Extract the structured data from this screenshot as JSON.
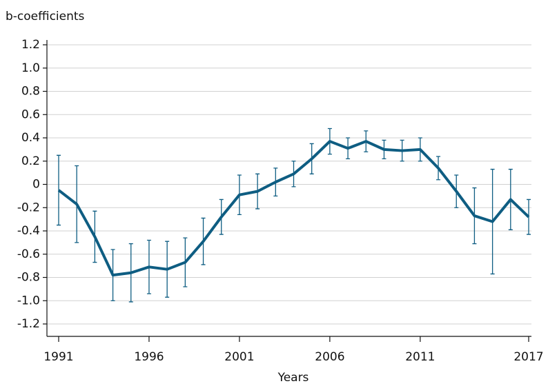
{
  "chart_data": {
    "type": "line",
    "y_label": "b-coefficients",
    "x_label": "Years",
    "x": [
      1991,
      1992,
      1993,
      1994,
      1995,
      1996,
      1997,
      1998,
      1999,
      2000,
      2001,
      2002,
      2003,
      2004,
      2005,
      2006,
      2007,
      2008,
      2009,
      2010,
      2011,
      2012,
      2013,
      2014,
      2015,
      2016,
      2017
    ],
    "series": [
      {
        "name": "b-coefficients",
        "color": "#0e5d82",
        "values": [
          -0.05,
          -0.17,
          -0.45,
          -0.78,
          -0.76,
          -0.71,
          -0.73,
          -0.67,
          -0.49,
          -0.28,
          -0.09,
          -0.06,
          0.02,
          0.09,
          0.22,
          0.37,
          0.31,
          0.37,
          0.3,
          0.29,
          0.3,
          0.14,
          -0.06,
          -0.27,
          -0.32,
          -0.13,
          -0.28
        ],
        "errors": [
          0.3,
          0.33,
          0.22,
          0.22,
          0.25,
          0.23,
          0.24,
          0.21,
          0.2,
          0.15,
          0.17,
          0.15,
          0.12,
          0.11,
          0.13,
          0.11,
          0.09,
          0.09,
          0.08,
          0.09,
          0.1,
          0.1,
          0.14,
          0.24,
          0.45,
          0.26,
          0.15
        ]
      }
    ],
    "xlim": [
      1991,
      2017
    ],
    "xticks": [
      1991,
      1996,
      2001,
      2006,
      2011,
      2017
    ],
    "ylim": [
      -1.2,
      1.2
    ],
    "yticks": [
      {
        "value": -1.2,
        "label": "-1.2"
      },
      {
        "value": -1,
        "label": "-1.0"
      },
      -0.8,
      -0.6,
      -0.4,
      -0.2,
      0,
      0.2,
      0.4,
      0.6,
      0.8,
      {
        "value": 1,
        "label": "1.0"
      },
      1.2
    ],
    "grid": true
  }
}
